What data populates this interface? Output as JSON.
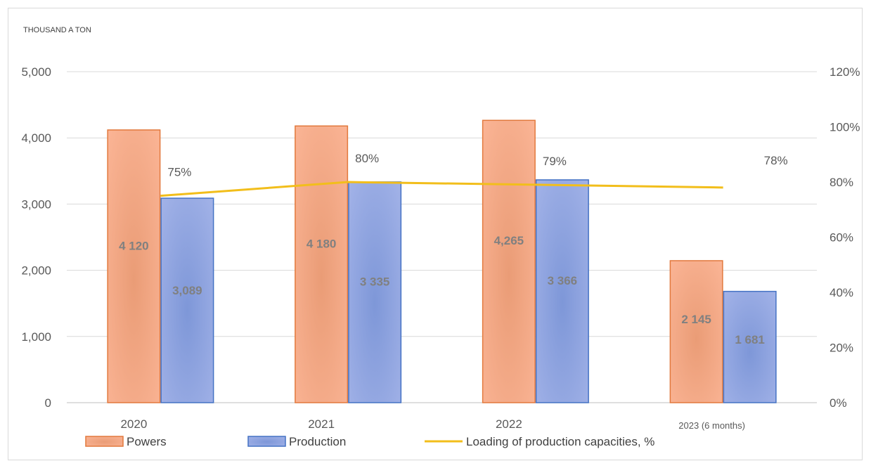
{
  "chart_data": {
    "type": "bar",
    "unit_label": "THOUSAND A TON",
    "categories": [
      "2020",
      "2021",
      "2022",
      "2023 (6 months)"
    ],
    "series": [
      {
        "name": "Powers",
        "kind": "bar",
        "axis": "left",
        "values": [
          4120,
          4180,
          4265,
          2145
        ],
        "value_labels": [
          "4 120",
          "4 180",
          "4,265",
          "2 145"
        ],
        "color": "#F0A07C",
        "stroke": "#E2793D"
      },
      {
        "name": "Production",
        "kind": "bar",
        "axis": "left",
        "values": [
          3089,
          3335,
          3366,
          1681
        ],
        "value_labels": [
          "3,089",
          "3 335",
          "3 366",
          "1 681"
        ],
        "color": "#8EA0DB",
        "stroke": "#4472C4"
      },
      {
        "name": "Loading of production capacities, %",
        "kind": "line",
        "axis": "right",
        "values": [
          75,
          80,
          79,
          78
        ],
        "value_labels": [
          "75%",
          "80%",
          "79%",
          "78%"
        ],
        "color": "#F2BE1B"
      }
    ],
    "y_left": {
      "range": [
        0,
        5000
      ],
      "ticks": [
        "0",
        "1,000",
        "2,000",
        "3,000",
        "4,000",
        "5,000"
      ]
    },
    "y_right": {
      "range": [
        0,
        120
      ],
      "ticks": [
        "0%",
        "20%",
        "40%",
        "60%",
        "80%",
        "100%",
        "120%"
      ]
    },
    "grid": true,
    "legend_position": "bottom"
  }
}
